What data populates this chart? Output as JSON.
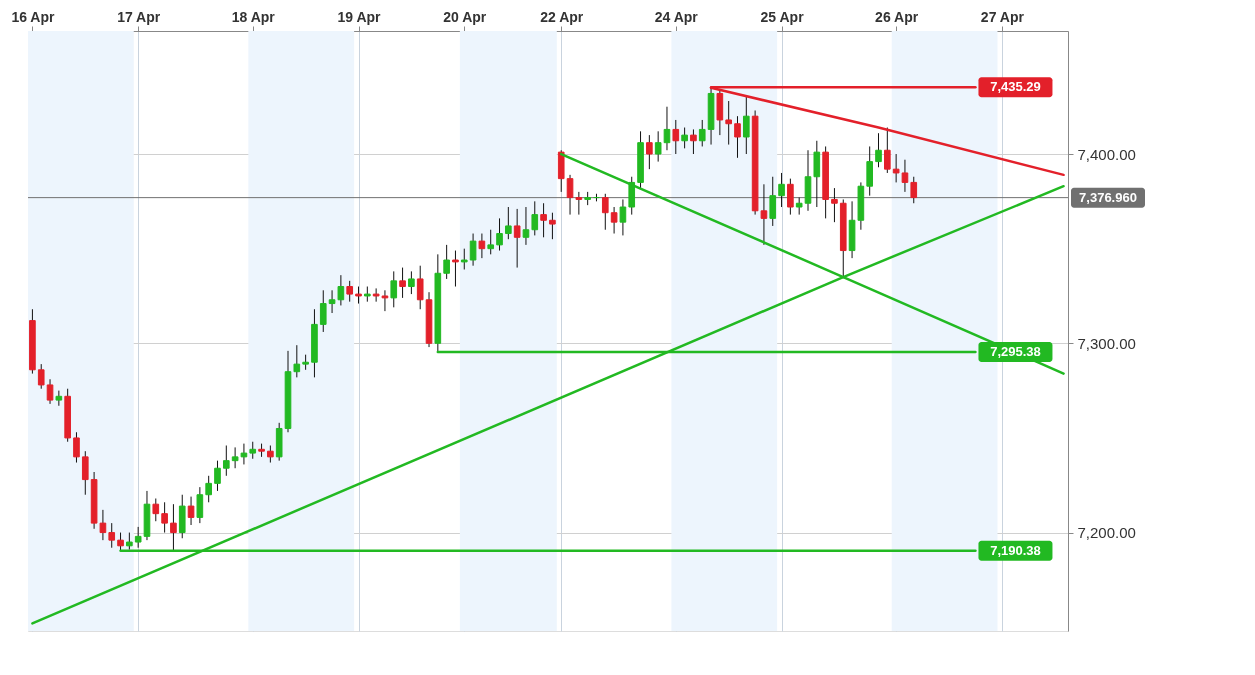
{
  "chart_data": {
    "type": "candlestick",
    "categories": [
      "16 Apr",
      null,
      null,
      null,
      null,
      null,
      null,
      null,
      null,
      null,
      null,
      null,
      "17 Apr",
      null,
      null,
      null,
      null,
      null,
      null,
      null,
      null,
      null,
      null,
      null,
      null,
      "18 Apr",
      null,
      null,
      null,
      null,
      null,
      null,
      null,
      null,
      null,
      null,
      null,
      "19 Apr",
      null,
      null,
      null,
      null,
      null,
      null,
      null,
      null,
      null,
      null,
      null,
      "20 Apr",
      null,
      null,
      null,
      null,
      null,
      null,
      null,
      null,
      null,
      null,
      "22 Apr",
      null,
      null,
      null,
      null,
      null,
      null,
      null,
      null,
      null,
      null,
      null,
      null,
      "24 Apr",
      null,
      null,
      null,
      null,
      null,
      null,
      null,
      null,
      null,
      null,
      null,
      "25 Apr",
      null,
      null,
      null,
      null,
      null,
      null,
      null,
      null,
      null,
      null,
      null,
      null,
      "26 Apr",
      null,
      null,
      null,
      null,
      null,
      null,
      null,
      null,
      null,
      null,
      null,
      "27 Apr",
      null,
      null,
      null,
      null,
      null,
      null,
      null
    ],
    "ohlc": [
      [
        7312,
        7318,
        7284,
        7286
      ],
      [
        7286,
        7289,
        7276,
        7278
      ],
      [
        7278,
        7281,
        7268,
        7270
      ],
      [
        7270,
        7275,
        7267,
        7272
      ],
      [
        7272,
        7276,
        7248,
        7250
      ],
      [
        7250,
        7253,
        7237,
        7240
      ],
      [
        7240,
        7243,
        7220,
        7228
      ],
      [
        7228,
        7232,
        7202,
        7205
      ],
      [
        7205,
        7212,
        7196,
        7200
      ],
      [
        7200,
        7205,
        7192,
        7196
      ],
      [
        7196,
        7200,
        7190.38,
        7193
      ],
      [
        7193,
        7200,
        7191,
        7195
      ],
      [
        7195,
        7203,
        7192,
        7198
      ],
      [
        7198,
        7222,
        7196,
        7215
      ],
      [
        7215,
        7218,
        7206,
        7210
      ],
      [
        7210,
        7216,
        7200,
        7205
      ],
      [
        7205,
        7215,
        7190.38,
        7200
      ],
      [
        7200,
        7220,
        7197,
        7214
      ],
      [
        7214,
        7219,
        7204,
        7208
      ],
      [
        7208,
        7224,
        7205,
        7220
      ],
      [
        7220,
        7230,
        7216,
        7226
      ],
      [
        7226,
        7238,
        7222,
        7234
      ],
      [
        7234,
        7246,
        7230,
        7238
      ],
      [
        7238,
        7245,
        7234,
        7240
      ],
      [
        7240,
        7247,
        7236,
        7242
      ],
      [
        7242,
        7248,
        7239,
        7244
      ],
      [
        7244,
        7247,
        7240,
        7243
      ],
      [
        7243,
        7246,
        7237,
        7240
      ],
      [
        7240,
        7258,
        7238,
        7255
      ],
      [
        7255,
        7296,
        7253,
        7285
      ],
      [
        7285,
        7299,
        7282,
        7289
      ],
      [
        7289,
        7294,
        7286,
        7290
      ],
      [
        7290,
        7318,
        7282,
        7310
      ],
      [
        7310,
        7328,
        7306,
        7321
      ],
      [
        7321,
        7328,
        7316,
        7323
      ],
      [
        7323,
        7336,
        7320,
        7330
      ],
      [
        7330,
        7333,
        7322,
        7326
      ],
      [
        7326,
        7330,
        7321,
        7325
      ],
      [
        7325,
        7330,
        7322,
        7326
      ],
      [
        7326,
        7329,
        7322,
        7325
      ],
      [
        7325,
        7328,
        7317,
        7324
      ],
      [
        7324,
        7338,
        7319,
        7333
      ],
      [
        7333,
        7340,
        7324,
        7330
      ],
      [
        7330,
        7338,
        7326,
        7334
      ],
      [
        7334,
        7341,
        7318,
        7323
      ],
      [
        7323,
        7327,
        7298,
        7300
      ],
      [
        7300,
        7347,
        7295.38,
        7337
      ],
      [
        7337,
        7352,
        7334,
        7344
      ],
      [
        7344,
        7349,
        7330,
        7343
      ],
      [
        7343,
        7350,
        7339,
        7344
      ],
      [
        7344,
        7358,
        7341,
        7354
      ],
      [
        7354,
        7358,
        7345,
        7350
      ],
      [
        7350,
        7360,
        7347,
        7352
      ],
      [
        7352,
        7366,
        7349,
        7358
      ],
      [
        7358,
        7372,
        7355,
        7362
      ],
      [
        7362,
        7371,
        7340,
        7356
      ],
      [
        7356,
        7372,
        7352,
        7360
      ],
      [
        7360,
        7375,
        7357,
        7368
      ],
      [
        7368,
        7374,
        7356,
        7365
      ],
      [
        7365,
        7369,
        7355,
        7363
      ],
      [
        7401,
        7402,
        7380,
        7387
      ],
      [
        7387,
        7389,
        7368,
        7377
      ],
      [
        7377,
        7380,
        7368,
        7376
      ],
      [
        7376,
        7380,
        7373,
        7377
      ],
      [
        7377,
        7379,
        7375,
        7377
      ],
      [
        7377,
        7379,
        7360,
        7369
      ],
      [
        7369,
        7372,
        7358,
        7364
      ],
      [
        7364,
        7376,
        7357,
        7372
      ],
      [
        7372,
        7388,
        7368,
        7385
      ],
      [
        7385,
        7412,
        7382,
        7406
      ],
      [
        7406,
        7410,
        7392,
        7400
      ],
      [
        7400,
        7412,
        7396,
        7406
      ],
      [
        7406,
        7425,
        7402,
        7413
      ],
      [
        7413,
        7418,
        7400,
        7407
      ],
      [
        7407,
        7414,
        7403,
        7410
      ],
      [
        7410,
        7413,
        7400,
        7407
      ],
      [
        7407,
        7418,
        7404,
        7413
      ],
      [
        7413,
        7435.29,
        7405,
        7432
      ],
      [
        7432,
        7434,
        7410,
        7418
      ],
      [
        7418,
        7428,
        7405,
        7416
      ],
      [
        7416,
        7420,
        7398,
        7409
      ],
      [
        7409,
        7431,
        7400,
        7420
      ],
      [
        7420,
        7423,
        7368,
        7370
      ],
      [
        7370,
        7384,
        7352,
        7366
      ],
      [
        7366,
        7388,
        7362,
        7378
      ],
      [
        7378,
        7390,
        7372,
        7384
      ],
      [
        7384,
        7387,
        7368,
        7372
      ],
      [
        7372,
        7377,
        7368,
        7374
      ],
      [
        7374,
        7402,
        7370,
        7388
      ],
      [
        7388,
        7407,
        7372,
        7401
      ],
      [
        7401,
        7404,
        7366,
        7376
      ],
      [
        7376,
        7382,
        7364,
        7374
      ],
      [
        7374,
        7376,
        7335,
        7349
      ],
      [
        7349,
        7375,
        7345,
        7365
      ],
      [
        7365,
        7385,
        7360,
        7383
      ],
      [
        7383,
        7404,
        7378,
        7396
      ],
      [
        7396,
        7411,
        7393,
        7402
      ],
      [
        7402,
        7414,
        7390,
        7392
      ],
      [
        7392,
        7400,
        7385,
        7390
      ],
      [
        7390,
        7397,
        7380,
        7385
      ],
      [
        7385,
        7388,
        7374,
        7377
      ],
      null,
      null,
      null,
      null,
      null,
      null,
      null,
      null,
      null,
      null,
      null,
      null,
      null,
      null,
      null,
      null,
      null
    ],
    "colors": [
      "#e3202a",
      "#e3202a",
      "#e3202a",
      "#22b922",
      "#e3202a",
      "#e3202a",
      "#e3202a",
      "#e3202a",
      "#e3202a",
      "#e3202a",
      "#e3202a",
      "#22b922",
      "#22b922",
      "#22b922",
      "#e3202a",
      "#e3202a",
      "#e3202a",
      "#22b922",
      "#e3202a",
      "#22b922",
      "#22b922",
      "#22b922",
      "#22b922",
      "#22b922",
      "#22b922",
      "#22b922",
      "#e3202a",
      "#e3202a",
      "#22b922",
      "#22b922",
      "#22b922",
      "#22b922",
      "#22b922",
      "#22b922",
      "#22b922",
      "#22b922",
      "#e3202a",
      "#e3202a",
      "#22b922",
      "#e3202a",
      "#e3202a",
      "#22b922",
      "#e3202a",
      "#22b922",
      "#e3202a",
      "#e3202a",
      "#22b922",
      "#22b922",
      "#e3202a",
      "#22b922",
      "#22b922",
      "#e3202a",
      "#22b922",
      "#22b922",
      "#22b922",
      "#e3202a",
      "#22b922",
      "#22b922",
      "#e3202a",
      "#e3202a",
      "#e3202a",
      "#e3202a",
      "#e3202a",
      "#22b922",
      "#22b922",
      "#e3202a",
      "#e3202a",
      "#22b922",
      "#22b922",
      "#22b922",
      "#e3202a",
      "#22b922",
      "#22b922",
      "#e3202a",
      "#22b922",
      "#e3202a",
      "#22b922",
      "#22b922",
      "#e3202a",
      "#e3202a",
      "#e3202a",
      "#22b922",
      "#e3202a",
      "#e3202a",
      "#22b922",
      "#22b922",
      "#e3202a",
      "#22b922",
      "#22b922",
      "#22b922",
      "#e3202a",
      "#e3202a",
      "#e3202a",
      "#22b922",
      "#22b922",
      "#22b922",
      "#22b922",
      "#e3202a",
      "#e3202a",
      "#e3202a",
      "#e3202a",
      null,
      null,
      null,
      null,
      null,
      null,
      null,
      null,
      null,
      null,
      null,
      null,
      null,
      null,
      null,
      null,
      null
    ],
    "ylim": [
      7148,
      7465
    ],
    "yticks": [
      {
        "value": 7200,
        "label": "7,200.00"
      },
      {
        "value": 7300,
        "label": "7,300.00"
      },
      {
        "value": 7400,
        "label": "7,400.00"
      }
    ],
    "grid": true,
    "series": [
      {
        "type": "line",
        "color": "#22b922",
        "values": [
          7152,
          null,
          null,
          null,
          null,
          null,
          null,
          null,
          null,
          null,
          null,
          null,
          null,
          null,
          null,
          null,
          null,
          null,
          null,
          null,
          null,
          null,
          null,
          null,
          null,
          null,
          null,
          null,
          null,
          null,
          null,
          null,
          null,
          null,
          null,
          null,
          null,
          null,
          null,
          null,
          null,
          null,
          null,
          null,
          null,
          null,
          null,
          null,
          null,
          null,
          null,
          null,
          null,
          null,
          null,
          null,
          null,
          null,
          null,
          null,
          null,
          null,
          null,
          null,
          null,
          null,
          null,
          null,
          null,
          null,
          null,
          null,
          null,
          null,
          null,
          null,
          null,
          null,
          null,
          null,
          null,
          null,
          null,
          null,
          null,
          null,
          null,
          null,
          null,
          null,
          null,
          null,
          7335,
          null,
          null,
          null,
          null,
          null,
          null,
          null,
          null,
          null,
          null,
          null,
          null,
          null,
          null,
          null,
          null,
          null,
          null,
          null,
          null,
          null,
          null,
          null,
          null,
          7383
        ]
      },
      {
        "type": "line",
        "color": "#22b922",
        "values": [
          null,
          null,
          null,
          null,
          null,
          null,
          null,
          null,
          null,
          null,
          null,
          null,
          null,
          null,
          null,
          null,
          null,
          null,
          null,
          null,
          null,
          null,
          null,
          null,
          null,
          null,
          null,
          null,
          null,
          null,
          null,
          null,
          null,
          null,
          null,
          null,
          null,
          null,
          null,
          null,
          null,
          null,
          null,
          null,
          null,
          null,
          null,
          null,
          null,
          null,
          null,
          null,
          null,
          null,
          null,
          null,
          null,
          null,
          null,
          null,
          7400,
          null,
          null,
          null,
          null,
          null,
          null,
          null,
          null,
          null,
          null,
          null,
          null,
          null,
          null,
          null,
          null,
          null,
          null,
          null,
          null,
          null,
          null,
          null,
          null,
          null,
          null,
          null,
          null,
          null,
          null,
          null,
          7335,
          null,
          null,
          null,
          null,
          null,
          null,
          null,
          null,
          null,
          null,
          null,
          null,
          null,
          null,
          null,
          null,
          null,
          null,
          null,
          null,
          null,
          null,
          null,
          null,
          7284
        ]
      },
      {
        "type": "line",
        "color": "#e3202a",
        "values": [
          null,
          null,
          null,
          null,
          null,
          null,
          null,
          null,
          null,
          null,
          null,
          null,
          null,
          null,
          null,
          null,
          null,
          null,
          null,
          null,
          null,
          null,
          null,
          null,
          null,
          null,
          null,
          null,
          null,
          null,
          null,
          null,
          null,
          null,
          null,
          null,
          null,
          null,
          null,
          null,
          null,
          null,
          null,
          null,
          null,
          null,
          null,
          null,
          null,
          null,
          null,
          null,
          null,
          null,
          null,
          null,
          null,
          null,
          null,
          null,
          null,
          null,
          null,
          null,
          null,
          null,
          null,
          null,
          null,
          null,
          null,
          null,
          null,
          null,
          null,
          null,
          null,
          7435,
          null,
          null,
          null,
          null,
          null,
          null,
          null,
          null,
          null,
          null,
          null,
          null,
          null,
          null,
          null,
          null,
          null,
          null,
          7414,
          null,
          null,
          null,
          null,
          null,
          null,
          null,
          null,
          null,
          null,
          null,
          null,
          null,
          null,
          null,
          null,
          null,
          null,
          null,
          null,
          7389
        ]
      },
      {
        "type": "line",
        "color": "#e3202a",
        "values": [
          null,
          null,
          null,
          null,
          null,
          null,
          null,
          null,
          null,
          null,
          null,
          null,
          null,
          null,
          null,
          null,
          null,
          null,
          null,
          null,
          null,
          null,
          null,
          null,
          null,
          null,
          null,
          null,
          null,
          null,
          null,
          null,
          null,
          null,
          null,
          null,
          null,
          null,
          null,
          null,
          null,
          null,
          null,
          null,
          null,
          null,
          null,
          null,
          null,
          null,
          null,
          null,
          null,
          null,
          null,
          null,
          null,
          null,
          null,
          null,
          null,
          null,
          null,
          null,
          null,
          null,
          null,
          null,
          null,
          null,
          null,
          null,
          null,
          null,
          null,
          null,
          null,
          7435.29,
          null,
          null,
          null,
          null,
          null,
          null,
          null,
          null,
          null,
          null,
          null,
          null,
          null,
          null,
          null,
          null,
          null,
          null,
          null,
          null,
          null,
          null,
          null,
          null,
          null,
          null,
          null,
          null,
          null,
          7435.29,
          null,
          null,
          null,
          null,
          null,
          null,
          null,
          null,
          null,
          null
        ],
        "value_labels": [
          null,
          null,
          null,
          null,
          null,
          null,
          null,
          null,
          null,
          null,
          null,
          null,
          null,
          null,
          null,
          null,
          null,
          null,
          null,
          null,
          null,
          null,
          null,
          null,
          null,
          null,
          null,
          null,
          null,
          null,
          null,
          null,
          null,
          null,
          null,
          null,
          null,
          null,
          null,
          null,
          null,
          null,
          null,
          null,
          null,
          null,
          null,
          null,
          null,
          null,
          null,
          null,
          null,
          null,
          null,
          null,
          null,
          null,
          null,
          null,
          null,
          null,
          null,
          null,
          null,
          null,
          null,
          null,
          null,
          null,
          null,
          null,
          null,
          null,
          null,
          null,
          null,
          null,
          null,
          null,
          null,
          null,
          null,
          null,
          null,
          null,
          null,
          null,
          null,
          null,
          null,
          null,
          null,
          null,
          null,
          null,
          null,
          null,
          null,
          null,
          null,
          null,
          null,
          null,
          null,
          null,
          null,
          "7,435.29",
          null,
          null,
          null,
          null,
          null,
          null,
          null,
          null,
          null,
          null
        ]
      },
      {
        "type": "line",
        "color": "#22b922",
        "values": [
          null,
          null,
          null,
          null,
          null,
          null,
          null,
          null,
          null,
          null,
          null,
          null,
          null,
          null,
          null,
          null,
          null,
          null,
          null,
          null,
          null,
          null,
          null,
          null,
          null,
          null,
          null,
          null,
          null,
          null,
          null,
          null,
          null,
          null,
          null,
          null,
          null,
          null,
          null,
          null,
          null,
          null,
          null,
          null,
          null,
          null,
          7295.38,
          null,
          null,
          null,
          null,
          null,
          null,
          null,
          null,
          null,
          null,
          null,
          null,
          null,
          null,
          null,
          null,
          null,
          null,
          null,
          null,
          null,
          null,
          null,
          null,
          null,
          null,
          null,
          null,
          null,
          null,
          null,
          null,
          null,
          null,
          null,
          null,
          null,
          null,
          null,
          null,
          null,
          null,
          null,
          null,
          null,
          null,
          null,
          null,
          null,
          null,
          null,
          null,
          null,
          null,
          null,
          null,
          null,
          null,
          null,
          null,
          7295.38,
          null,
          null,
          null,
          null,
          null,
          null,
          null,
          null,
          null,
          null
        ],
        "value_labels": [
          null,
          null,
          null,
          null,
          null,
          null,
          null,
          null,
          null,
          null,
          null,
          null,
          null,
          null,
          null,
          null,
          null,
          null,
          null,
          null,
          null,
          null,
          null,
          null,
          null,
          null,
          null,
          null,
          null,
          null,
          null,
          null,
          null,
          null,
          null,
          null,
          null,
          null,
          null,
          null,
          null,
          null,
          null,
          null,
          null,
          null,
          null,
          null,
          null,
          null,
          null,
          null,
          null,
          null,
          null,
          null,
          null,
          null,
          null,
          null,
          null,
          null,
          null,
          null,
          null,
          null,
          null,
          null,
          null,
          null,
          null,
          null,
          null,
          null,
          null,
          null,
          null,
          null,
          null,
          null,
          null,
          null,
          null,
          null,
          null,
          null,
          null,
          null,
          null,
          null,
          null,
          null,
          null,
          null,
          null,
          null,
          null,
          null,
          null,
          null,
          null,
          null,
          null,
          null,
          null,
          null,
          null,
          "7,295.38",
          null,
          null,
          null,
          null,
          null,
          null,
          null,
          null,
          null,
          null
        ]
      },
      {
        "type": "line",
        "color": "#22b922",
        "values": [
          null,
          null,
          null,
          null,
          null,
          null,
          null,
          null,
          null,
          null,
          7190.38,
          null,
          null,
          null,
          null,
          null,
          null,
          null,
          null,
          null,
          null,
          null,
          null,
          null,
          null,
          null,
          null,
          null,
          null,
          null,
          null,
          null,
          null,
          null,
          null,
          null,
          null,
          null,
          null,
          null,
          null,
          null,
          null,
          null,
          null,
          null,
          null,
          null,
          null,
          null,
          null,
          null,
          null,
          null,
          null,
          null,
          null,
          null,
          null,
          null,
          null,
          null,
          null,
          null,
          null,
          null,
          null,
          null,
          null,
          null,
          null,
          null,
          null,
          null,
          null,
          null,
          null,
          null,
          null,
          null,
          null,
          null,
          null,
          null,
          null,
          null,
          null,
          null,
          null,
          null,
          null,
          null,
          null,
          null,
          null,
          null,
          null,
          null,
          null,
          null,
          null,
          null,
          null,
          null,
          null,
          null,
          null,
          7190.38,
          null,
          null,
          null,
          null,
          null,
          null,
          null,
          null,
          null,
          null
        ],
        "value_labels": [
          null,
          null,
          null,
          null,
          null,
          null,
          null,
          null,
          null,
          null,
          null,
          null,
          null,
          null,
          null,
          null,
          null,
          null,
          null,
          null,
          null,
          null,
          null,
          null,
          null,
          null,
          null,
          null,
          null,
          null,
          null,
          null,
          null,
          null,
          null,
          null,
          null,
          null,
          null,
          null,
          null,
          null,
          null,
          null,
          null,
          null,
          null,
          null,
          null,
          null,
          null,
          null,
          null,
          null,
          null,
          null,
          null,
          null,
          null,
          null,
          null,
          null,
          null,
          null,
          null,
          null,
          null,
          null,
          null,
          null,
          null,
          null,
          null,
          null,
          null,
          null,
          null,
          null,
          null,
          null,
          null,
          null,
          null,
          null,
          null,
          null,
          null,
          null,
          null,
          null,
          null,
          null,
          null,
          null,
          null,
          null,
          null,
          null,
          null,
          null,
          null,
          null,
          null,
          null,
          null,
          null,
          null,
          "7,190.38",
          null,
          null,
          null,
          null,
          null,
          null,
          null,
          null,
          null,
          null
        ]
      }
    ],
    "bands": [
      {
        "axis": "x",
        "from": "16 Apr",
        "to": "17 Apr",
        "color": "#edf5fd"
      },
      {
        "axis": "x",
        "from": "18 Apr",
        "to": "19 Apr",
        "color": "#edf5fd"
      },
      {
        "axis": "x",
        "from": "20 Apr",
        "to": "22 Apr",
        "color": "#edf5fd"
      },
      {
        "axis": "x",
        "from": "24 Apr",
        "to": "25 Apr",
        "color": "#edf5fd"
      },
      {
        "axis": "x",
        "from": "26 Apr",
        "to": "27 Apr",
        "color": "#edf5fd"
      }
    ],
    "ref_lines": [
      {
        "axis": "y",
        "value": 7376.96,
        "label": "7,376.960",
        "color": "#707070"
      }
    ]
  }
}
